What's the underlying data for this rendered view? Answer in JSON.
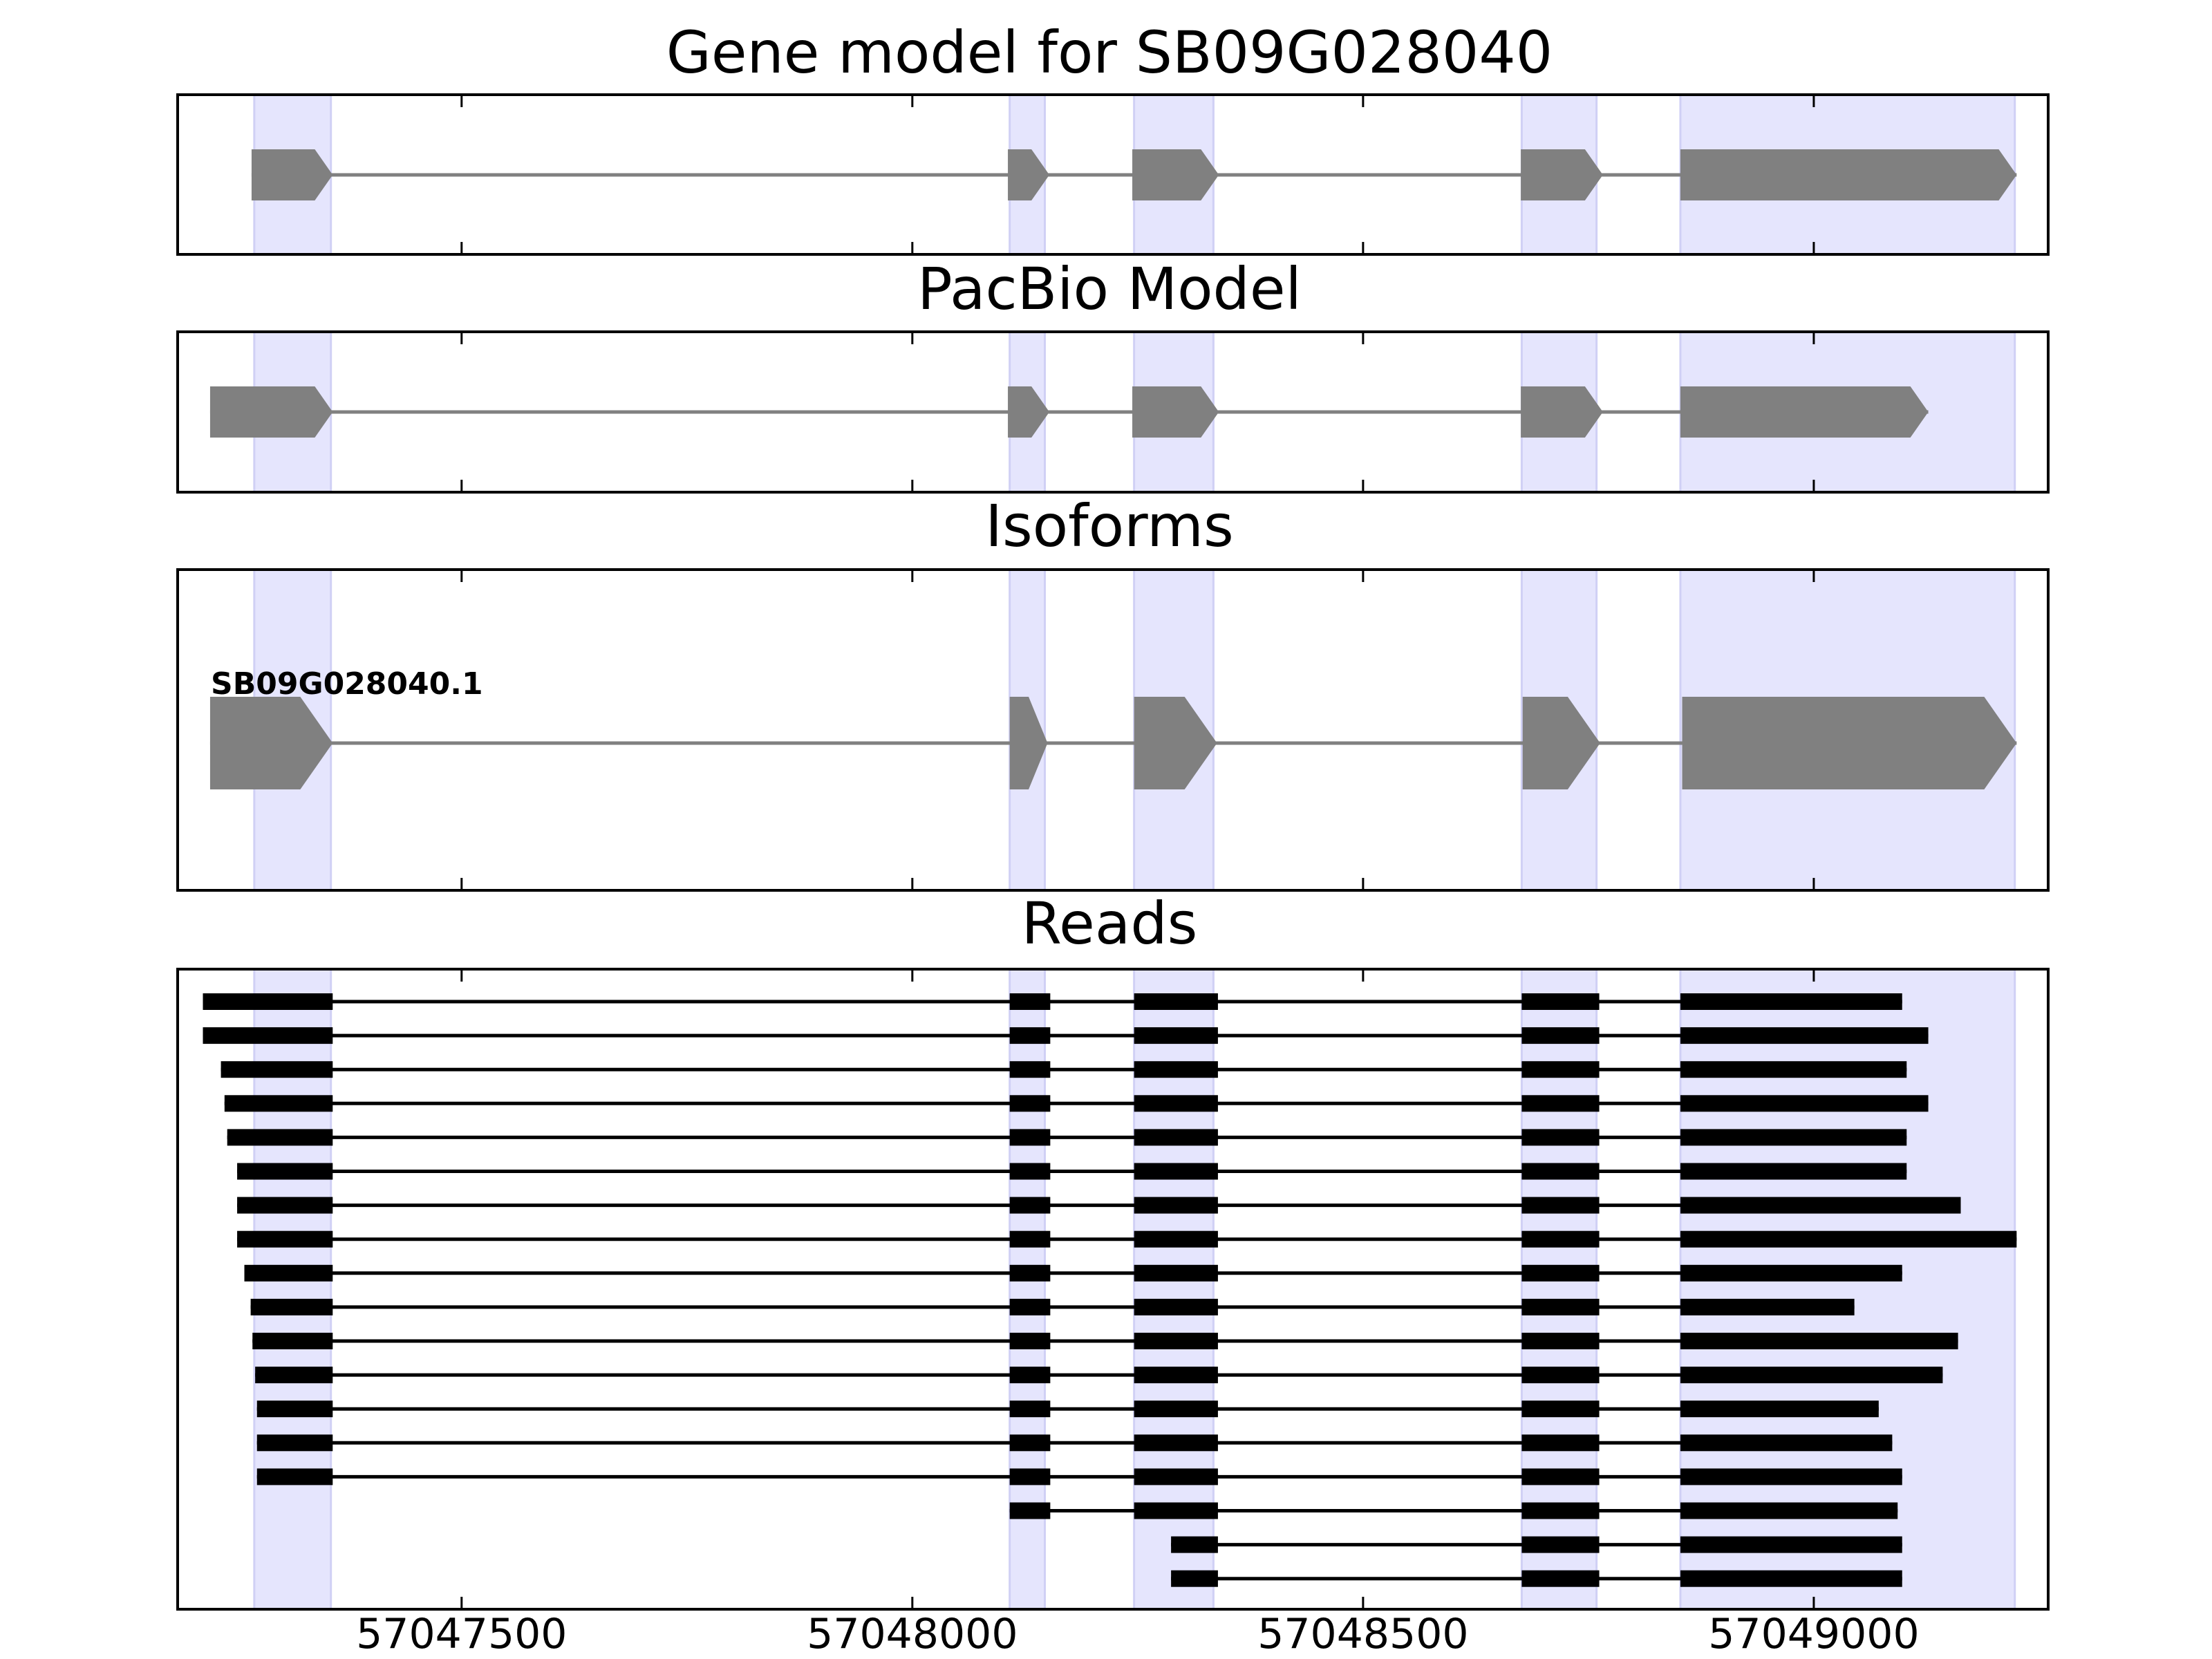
{
  "chart_data": {
    "type": "gene-model",
    "x_axis": {
      "min": 57047185,
      "max": 57049260,
      "ticks": [
        57047500,
        57048000,
        57048500,
        57049000
      ],
      "tick_labels": [
        "57047500",
        "57048000",
        "57048500",
        "57049000"
      ]
    },
    "exon_regions": [
      [
        57047270,
        57047355
      ],
      [
        57048108,
        57048147
      ],
      [
        57048246,
        57048334
      ],
      [
        57048676,
        57048759
      ],
      [
        57048852,
        57049223
      ]
    ],
    "colors": {
      "exon": "#808080",
      "intron_line": "#808080",
      "highlight": "#e5e5fd",
      "highlight_edge": "#d0d0f5",
      "read": "#000000"
    },
    "panels": [
      {
        "id": "gene",
        "title": "Gene model for SB09G028040",
        "strand": "+",
        "exons": [
          [
            57047267,
            57047357
          ],
          [
            57048106,
            57048152
          ],
          [
            57048244,
            57048340
          ],
          [
            57048675,
            57048766
          ],
          [
            57048852,
            57049225
          ]
        ]
      },
      {
        "id": "pacbio",
        "title": "PacBio Model",
        "strand": "+",
        "exons": [
          [
            57047221,
            57047357
          ],
          [
            57048106,
            57048152
          ],
          [
            57048244,
            57048340
          ],
          [
            57048675,
            57048766
          ],
          [
            57048852,
            57049127
          ]
        ]
      },
      {
        "id": "isoforms",
        "title": "Isoforms",
        "isoforms": [
          {
            "name": "SB09G028040.1",
            "exons": [
              [
                57047221,
                57047357
              ],
              [
                57048108,
                57048150
              ],
              [
                57048246,
                57048338
              ],
              [
                57048677,
                57048763
              ],
              [
                57048854,
                57049225
              ]
            ]
          }
        ]
      },
      {
        "id": "reads",
        "title": "Reads",
        "reads": [
          [
            57047213,
            57048153,
            57049098
          ],
          [
            57047213,
            57048153,
            57049127
          ],
          [
            57047233,
            57048153,
            57049103
          ],
          [
            57047237,
            57048153,
            57049127
          ],
          [
            57047240,
            57048153,
            57049103
          ],
          [
            57047251,
            57048153,
            57049103
          ],
          [
            57047251,
            57048153,
            57049163
          ],
          [
            57047251,
            57048153,
            57049225
          ],
          [
            57047259,
            57048153,
            57049098
          ],
          [
            57047266,
            57048153,
            57049045
          ],
          [
            57047268,
            57048153,
            57049160
          ],
          [
            57047271,
            57048153,
            57049143
          ],
          [
            57047273,
            57048153,
            57049072
          ],
          [
            57047273,
            57048153,
            57049087
          ],
          [
            57047273,
            57048153,
            57049098
          ],
          [
            null,
            57048106,
            57049093
          ],
          [
            null,
            57048287,
            57049098
          ],
          [
            null,
            57048287,
            57049098
          ]
        ],
        "read_inner_exons": [
          [
            57048108,
            57048153
          ],
          [
            57048246,
            57048339
          ],
          [
            57048676,
            57048762
          ]
        ],
        "read_first_exon_end": 57047357,
        "read_last_exon_start": 57048852
      }
    ]
  }
}
